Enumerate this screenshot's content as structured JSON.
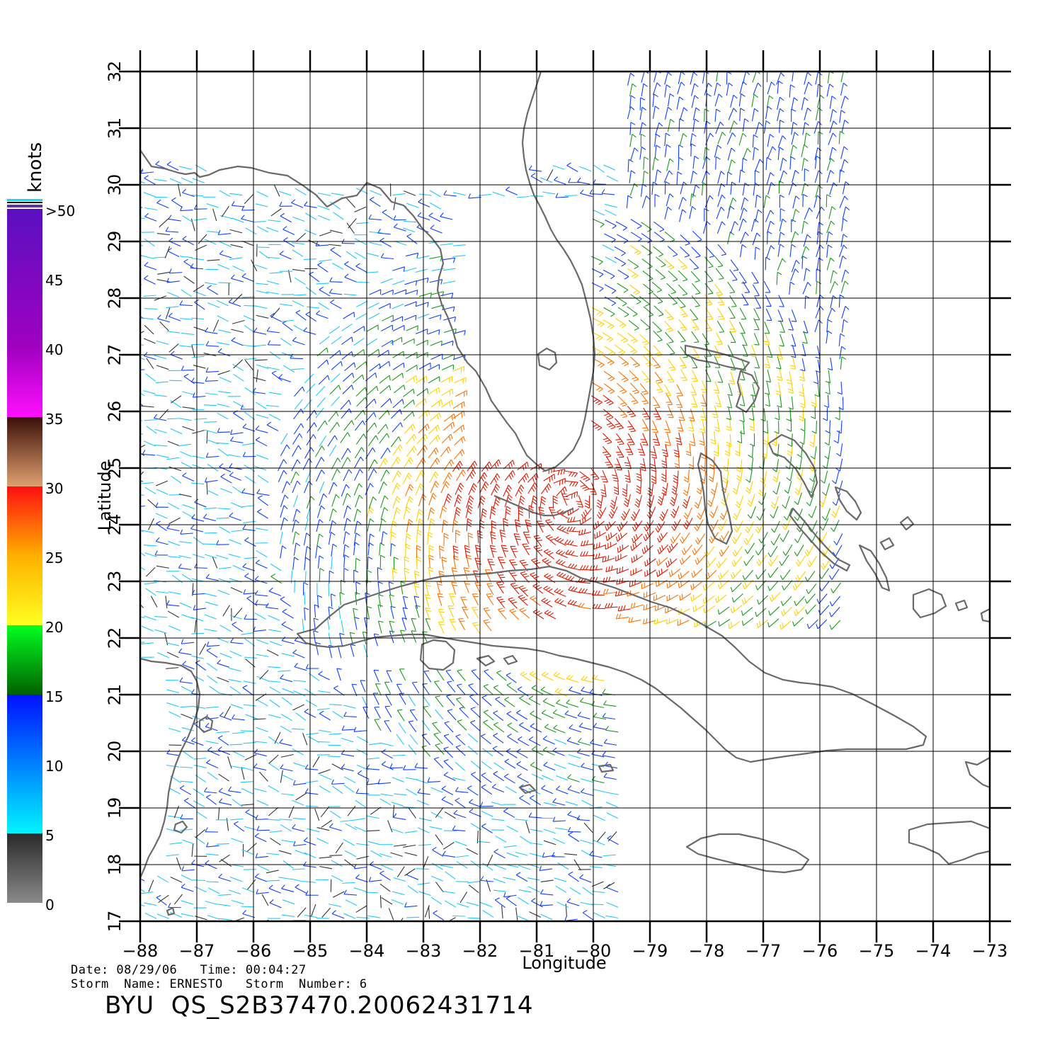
{
  "map": {
    "lon_range": [
      -88,
      -73
    ],
    "lat_range": [
      17,
      32
    ],
    "lon_ticks": [
      -88,
      -87,
      -86,
      -85,
      -84,
      -83,
      -82,
      -81,
      -80,
      -79,
      -78,
      -77,
      -76,
      -75,
      -74,
      -73
    ],
    "lat_ticks": [
      17,
      18,
      19,
      20,
      21,
      22,
      23,
      24,
      25,
      26,
      27,
      28,
      29,
      30,
      31,
      32
    ],
    "xlabel": "Longitude",
    "ylabel": "Latitude",
    "grid": true,
    "coastline_color": "#6a6a6a",
    "storm_center": {
      "lon": -80.4,
      "lat": 24.4
    },
    "swath_coverage": "Gulf of Mexico and Caribbean west of -79.5; Atlantic east of Florida from 22.5 to 32 N"
  },
  "legend": {
    "title": "knots",
    "top_label": ">50",
    "bands": [
      {
        "label": "0",
        "color": "#7a7a7a"
      },
      {
        "label": "5",
        "color": "#2a2a2a"
      },
      {
        "label": "10",
        "color": "#00ecff"
      },
      {
        "label": "15",
        "color": "#0050ff"
      },
      {
        "label": "20",
        "color": "#00cc00"
      },
      {
        "label": "25",
        "color": "#ffe000"
      },
      {
        "label": "30",
        "color": "#ff7a00"
      },
      {
        "label": "35",
        "color": "#e02000"
      },
      {
        "label": "40",
        "color": "#4a1a10"
      },
      {
        "label": "45",
        "color": "#e000e0"
      },
      {
        "label": ">50",
        "color": "#6a00c0"
      }
    ]
  },
  "meta": {
    "date_line": "Date: 08/29/06   Time: 00:04:27",
    "storm_line": "Storm  Name: ERNESTO   Storm  Number: 6",
    "product": "BYU  QS_S2B37470.20062431714"
  }
}
